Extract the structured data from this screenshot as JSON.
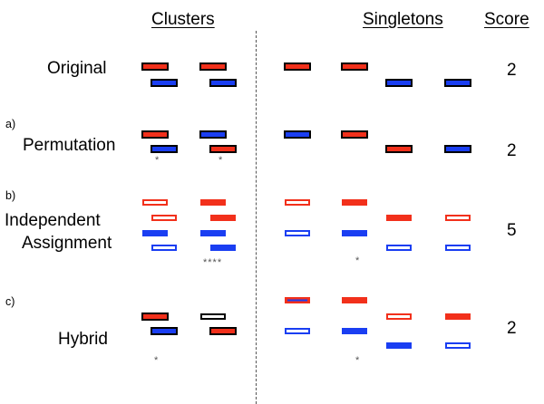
{
  "headers": {
    "clusters": "Clusters",
    "singletons": "Singletons",
    "score": "Score"
  },
  "colors": {
    "red": "#f2301b",
    "blue": "#1a3ef2",
    "outline_dark": "#000000"
  },
  "rows": [
    {
      "key": "original",
      "letter": "",
      "label": "Original",
      "score": "2",
      "bars": [
        {
          "group": "cluster-1",
          "color": "red",
          "style": "filled-black-border"
        },
        {
          "group": "cluster-1",
          "color": "blue",
          "style": "filled-black-border"
        },
        {
          "group": "cluster-2",
          "color": "red",
          "style": "filled-black-border"
        },
        {
          "group": "cluster-2",
          "color": "blue",
          "style": "filled-black-border"
        },
        {
          "group": "singleton-1",
          "color": "red",
          "style": "filled-black-border"
        },
        {
          "group": "singleton-2",
          "color": "red",
          "style": "filled-black-border"
        },
        {
          "group": "singleton-3",
          "color": "blue",
          "style": "filled-black-border"
        },
        {
          "group": "singleton-4",
          "color": "blue",
          "style": "filled-black-border"
        }
      ],
      "stars": []
    },
    {
      "key": "permutation",
      "letter": "a)",
      "label": "Permutation",
      "score": "2",
      "bars": [
        {
          "group": "cluster-1",
          "color": "red",
          "style": "filled-black-border"
        },
        {
          "group": "cluster-1",
          "color": "blue",
          "style": "filled-black-border"
        },
        {
          "group": "cluster-2",
          "color": "blue",
          "style": "filled-black-border"
        },
        {
          "group": "cluster-2",
          "color": "red",
          "style": "filled-black-border"
        },
        {
          "group": "singleton-1",
          "color": "blue",
          "style": "filled-black-border"
        },
        {
          "group": "singleton-2",
          "color": "red",
          "style": "filled-black-border"
        },
        {
          "group": "singleton-3",
          "color": "red",
          "style": "filled-black-border"
        },
        {
          "group": "singleton-4",
          "color": "blue",
          "style": "filled-black-border"
        }
      ],
      "stars": [
        "*",
        "*"
      ]
    },
    {
      "key": "independent",
      "letter": "b)",
      "label": "Independent",
      "label2": "Assignment",
      "score": "5",
      "bars": [
        {
          "group": "cluster-1",
          "color": "red",
          "style": "outline"
        },
        {
          "group": "cluster-1",
          "color": "red",
          "style": "outline"
        },
        {
          "group": "cluster-1",
          "color": "blue",
          "style": "filled"
        },
        {
          "group": "cluster-1",
          "color": "blue",
          "style": "outline"
        },
        {
          "group": "cluster-2",
          "color": "red",
          "style": "filled"
        },
        {
          "group": "cluster-2",
          "color": "red",
          "style": "filled"
        },
        {
          "group": "cluster-2",
          "color": "blue",
          "style": "filled"
        },
        {
          "group": "cluster-2",
          "color": "blue",
          "style": "filled"
        },
        {
          "group": "singleton-1",
          "color": "red",
          "style": "outline"
        },
        {
          "group": "singleton-1",
          "color": "blue",
          "style": "outline"
        },
        {
          "group": "singleton-2",
          "color": "red",
          "style": "filled"
        },
        {
          "group": "singleton-2",
          "color": "blue",
          "style": "filled"
        },
        {
          "group": "singleton-3",
          "color": "red",
          "style": "filled"
        },
        {
          "group": "singleton-3",
          "color": "blue",
          "style": "outline"
        },
        {
          "group": "singleton-4",
          "color": "red",
          "style": "outline"
        },
        {
          "group": "singleton-4",
          "color": "blue",
          "style": "outline"
        }
      ],
      "stars": [
        "****",
        "*"
      ]
    },
    {
      "key": "hybrid",
      "letter": "c)",
      "label": "Hybrid",
      "score": "2",
      "bars": [
        {
          "group": "cluster-1",
          "color": "red",
          "style": "filled-black-border"
        },
        {
          "group": "cluster-1",
          "color": "blue",
          "style": "filled-black-border"
        },
        {
          "group": "cluster-2",
          "color": "white",
          "style": "black-outline"
        },
        {
          "group": "cluster-2",
          "color": "red",
          "style": "filled-black-border"
        },
        {
          "group": "singleton-1",
          "color": "red",
          "style": "filled-blue-stripe"
        },
        {
          "group": "singleton-1",
          "color": "blue",
          "style": "outline"
        },
        {
          "group": "singleton-2",
          "color": "red",
          "style": "filled"
        },
        {
          "group": "singleton-2",
          "color": "blue",
          "style": "filled"
        },
        {
          "group": "singleton-3",
          "color": "red",
          "style": "outline"
        },
        {
          "group": "singleton-3",
          "color": "blue",
          "style": "filled"
        },
        {
          "group": "singleton-4",
          "color": "red",
          "style": "filled"
        },
        {
          "group": "singleton-4",
          "color": "blue",
          "style": "outline"
        }
      ],
      "stars": [
        "*",
        "*"
      ]
    }
  ]
}
